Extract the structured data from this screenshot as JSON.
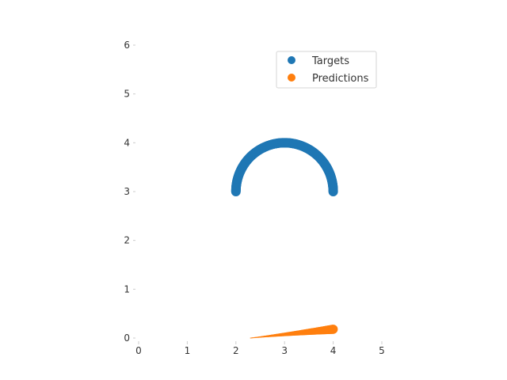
{
  "chart_data": {
    "type": "scatter",
    "title": "",
    "xlabel": "",
    "ylabel": "",
    "xlim": [
      0,
      5
    ],
    "ylim": [
      0,
      6
    ],
    "xticks": [
      "0",
      "1",
      "2",
      "3",
      "4",
      "5"
    ],
    "yticks": [
      "0",
      "1",
      "2",
      "3",
      "4",
      "5",
      "6"
    ],
    "grid": false,
    "legend_position": "top-right",
    "series": [
      {
        "name": "Targets",
        "color": "#1f77b4",
        "shape": "semicircle-arc",
        "center": [
          3,
          3
        ],
        "radius": 1,
        "theta_start_deg": 0,
        "theta_end_deg": 180
      },
      {
        "name": "Predictions",
        "color": "#ff7f0e",
        "shape": "tapered-line",
        "from": [
          2.3,
          0.0
        ],
        "to": [
          4.0,
          0.18
        ]
      }
    ]
  }
}
